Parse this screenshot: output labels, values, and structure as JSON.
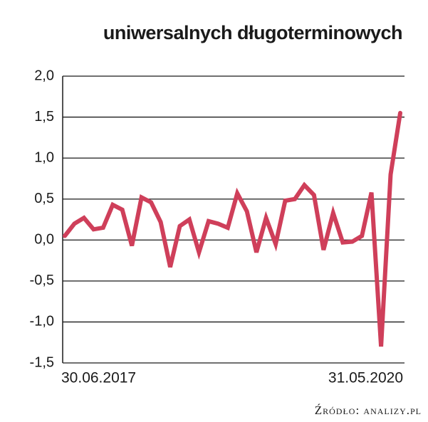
{
  "chart_data": {
    "type": "line",
    "title": "uniwersalnych długoterminowych",
    "source": "Źródło: analizy.pl",
    "categories": [
      "30.06.2017",
      null,
      null,
      null,
      null,
      null,
      null,
      null,
      null,
      null,
      null,
      null,
      null,
      null,
      null,
      null,
      null,
      null,
      null,
      null,
      null,
      null,
      null,
      null,
      null,
      null,
      null,
      null,
      null,
      null,
      null,
      null,
      null,
      null,
      null,
      "31.05.2020"
    ],
    "values": [
      0.05,
      0.2,
      0.27,
      0.13,
      0.15,
      0.43,
      0.37,
      -0.07,
      0.52,
      0.46,
      0.22,
      -0.33,
      0.17,
      0.25,
      -0.15,
      0.23,
      0.2,
      0.15,
      0.57,
      0.35,
      -0.15,
      0.27,
      -0.05,
      0.48,
      0.5,
      0.67,
      0.55,
      -0.12,
      0.33,
      -0.03,
      -0.02,
      0.05,
      0.58,
      -1.3,
      0.8,
      1.55
    ],
    "color": "#cf3f5a",
    "ylim": [
      -1.5,
      2.0
    ],
    "yticks": [
      {
        "value": 2.0,
        "label": "2,0"
      },
      {
        "value": 1.5,
        "label": "1,5"
      },
      {
        "value": 1.0,
        "label": "1,0"
      },
      {
        "value": 0.5,
        "label": "0,5"
      },
      {
        "value": 0.0,
        "label": "0,0"
      },
      {
        "value": -0.5,
        "label": "-0,5"
      },
      {
        "value": -1.0,
        "label": "-1,0"
      },
      {
        "value": -1.5,
        "label": "-1,5"
      }
    ],
    "grid": true
  }
}
